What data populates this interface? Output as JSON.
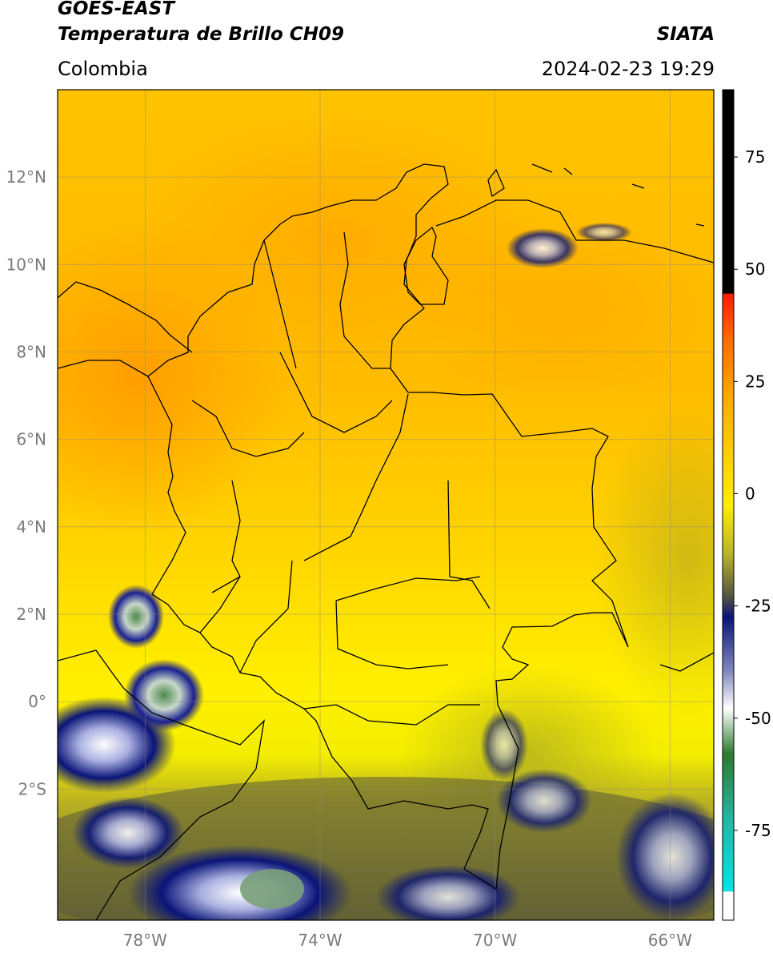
{
  "header": {
    "satellite": "GOES-EAST",
    "product": "Temperatura de Brillo CH09",
    "region": "Colombia",
    "organization": "SIATA",
    "datetime": "2024-02-23 19:29"
  },
  "map": {
    "lon_range": [
      -80,
      -65
    ],
    "lat_range": [
      -5,
      14
    ],
    "lat_ticks": [
      {
        "value": 12,
        "label": "12°N"
      },
      {
        "value": 10,
        "label": "10°N"
      },
      {
        "value": 8,
        "label": "8°N"
      },
      {
        "value": 6,
        "label": "6°N"
      },
      {
        "value": 4,
        "label": "4°N"
      },
      {
        "value": 2,
        "label": "2°N"
      },
      {
        "value": 0,
        "label": "0°"
      },
      {
        "value": -2,
        "label": "2°S"
      }
    ],
    "lon_ticks": [
      {
        "value": -78,
        "label": "78°W"
      },
      {
        "value": -74,
        "label": "74°W"
      },
      {
        "value": -70,
        "label": "70°W"
      },
      {
        "value": -66,
        "label": "66°W"
      }
    ],
    "grid": true
  },
  "colorbar": {
    "range": [
      -95,
      90
    ],
    "ticks": [
      {
        "value": 75,
        "label": "75"
      },
      {
        "value": 50,
        "label": "50"
      },
      {
        "value": 25,
        "label": "25"
      },
      {
        "value": 0,
        "label": "0"
      },
      {
        "value": -25,
        "label": "-25"
      },
      {
        "value": -50,
        "label": "-50"
      },
      {
        "value": -75,
        "label": "-75"
      }
    ],
    "colors": {
      "black": "#000000",
      "red": "#ee1a00",
      "orange": "#ff9900",
      "yellow": "#ffee00",
      "olive": "#8a8a2a",
      "gray": "#55553f",
      "navy": "#0a1478",
      "white": "#ffffff",
      "green": "#2c7a2c",
      "teal": "#22b8a6",
      "cyan": "#00e6e6"
    }
  }
}
